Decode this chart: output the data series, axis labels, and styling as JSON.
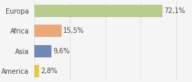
{
  "categories": [
    "America",
    "Asia",
    "Africa",
    "Europa"
  ],
  "values": [
    2.8,
    9.6,
    15.5,
    72.1
  ],
  "labels": [
    "2,8%",
    "9,6%",
    "15,5%",
    "72,1%"
  ],
  "bar_colors": [
    "#e8c840",
    "#7088b8",
    "#e8a878",
    "#b8cc90"
  ],
  "xlim": [
    0,
    88
  ],
  "background_color": "#f5f5f5",
  "bar_height": 0.62,
  "label_fontsize": 7.0,
  "tick_fontsize": 7.0,
  "grid_color": "#dddddd",
  "text_color": "#444444"
}
